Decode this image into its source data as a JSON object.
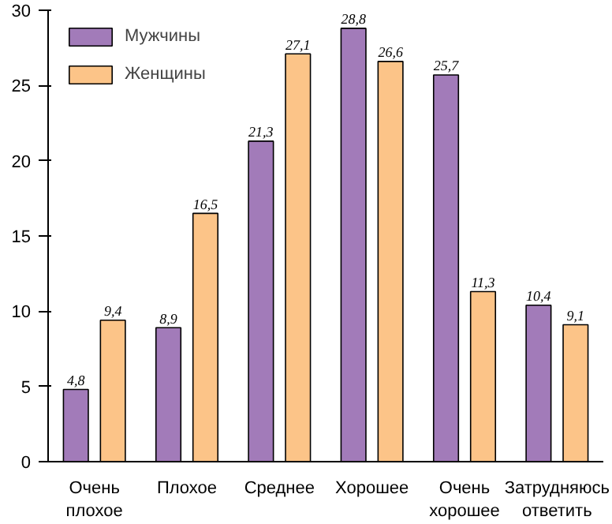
{
  "chart_data": {
    "type": "bar",
    "categories": [
      "Очень плохое",
      "Плохое",
      "Среднее",
      "Хорошее",
      "Очень хорошее",
      "Затрудняюсь ответить"
    ],
    "series": [
      {
        "name": "Мужчины",
        "color": "#a27bb9",
        "values": [
          4.8,
          8.9,
          21.3,
          28.8,
          25.7,
          10.4
        ],
        "value_labels": [
          "4,8",
          "8,9",
          "21,3",
          "28,8",
          "25,7",
          "10,4"
        ]
      },
      {
        "name": "Женщины",
        "color": "#fcc488",
        "values": [
          9.4,
          16.5,
          27.1,
          26.6,
          11.3,
          9.1
        ],
        "value_labels": [
          "9,4",
          "16,5",
          "27,1",
          "26,6",
          "11,3",
          "9,1"
        ]
      }
    ],
    "ylim": [
      0,
      30
    ],
    "yticks": [
      0,
      5,
      10,
      15,
      20,
      25,
      30
    ],
    "legend": "top left",
    "grid": false
  }
}
